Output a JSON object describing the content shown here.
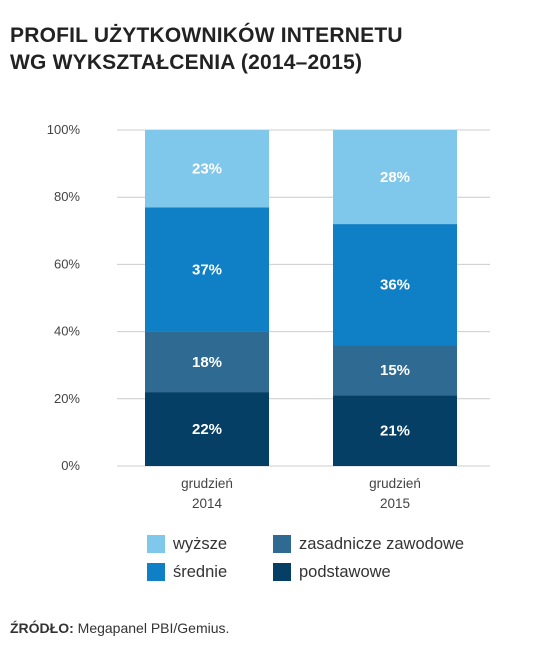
{
  "colors": {
    "wyzsze": "#7FC8EC",
    "srednie": "#0F7FC6",
    "zasadnicze": "#2F6A93",
    "podstawowe": "#063F66",
    "grid": "#CCCCCC"
  },
  "chart_data": {
    "type": "bar",
    "stacked": true,
    "title": "PROFIL UŻYTKOWNIKÓW INTERNETU WG WYKSZTAŁCENIA (2014–2015)",
    "title_lines": [
      "PROFIL UŻYTKOWNIKÓW INTERNETU",
      "WG WYKSZTAŁCENIA (2014–2015)"
    ],
    "categories": [
      {
        "line1": "grudzień",
        "line2": "2014"
      },
      {
        "line1": "grudzień",
        "line2": "2015"
      }
    ],
    "series": [
      {
        "key": "podstawowe",
        "name": "podstawowe",
        "values": [
          22,
          21
        ],
        "labels": [
          "22%",
          "21%"
        ]
      },
      {
        "key": "zasadnicze",
        "name": "zasadnicze zawodowe",
        "values": [
          18,
          15
        ],
        "labels": [
          "18%",
          "15%"
        ]
      },
      {
        "key": "srednie",
        "name": "średnie",
        "values": [
          37,
          36
        ],
        "labels": [
          "37%",
          "36%"
        ]
      },
      {
        "key": "wyzsze",
        "name": "wyższe",
        "values": [
          23,
          28
        ],
        "labels": [
          "23%",
          "28%"
        ]
      }
    ],
    "yticks": [
      {
        "value": 0,
        "label": "0%"
      },
      {
        "value": 20,
        "label": "20%"
      },
      {
        "value": 40,
        "label": "40%"
      },
      {
        "value": 60,
        "label": "60%"
      },
      {
        "value": 80,
        "label": "80%"
      },
      {
        "value": 100,
        "label": "100%"
      }
    ],
    "ylim": [
      0,
      100
    ],
    "grid": true,
    "legend_placement": "bottom"
  },
  "legend": [
    {
      "key": "wyzsze",
      "label": "wyższe"
    },
    {
      "key": "zasadnicze",
      "label": "zasadnicze zawodowe"
    },
    {
      "key": "srednie",
      "label": "średnie"
    },
    {
      "key": "podstawowe",
      "label": "podstawowe"
    }
  ],
  "source": {
    "prefix": "ŹRÓDŁO:",
    "text": " Megapanel PBI/Gemius."
  }
}
